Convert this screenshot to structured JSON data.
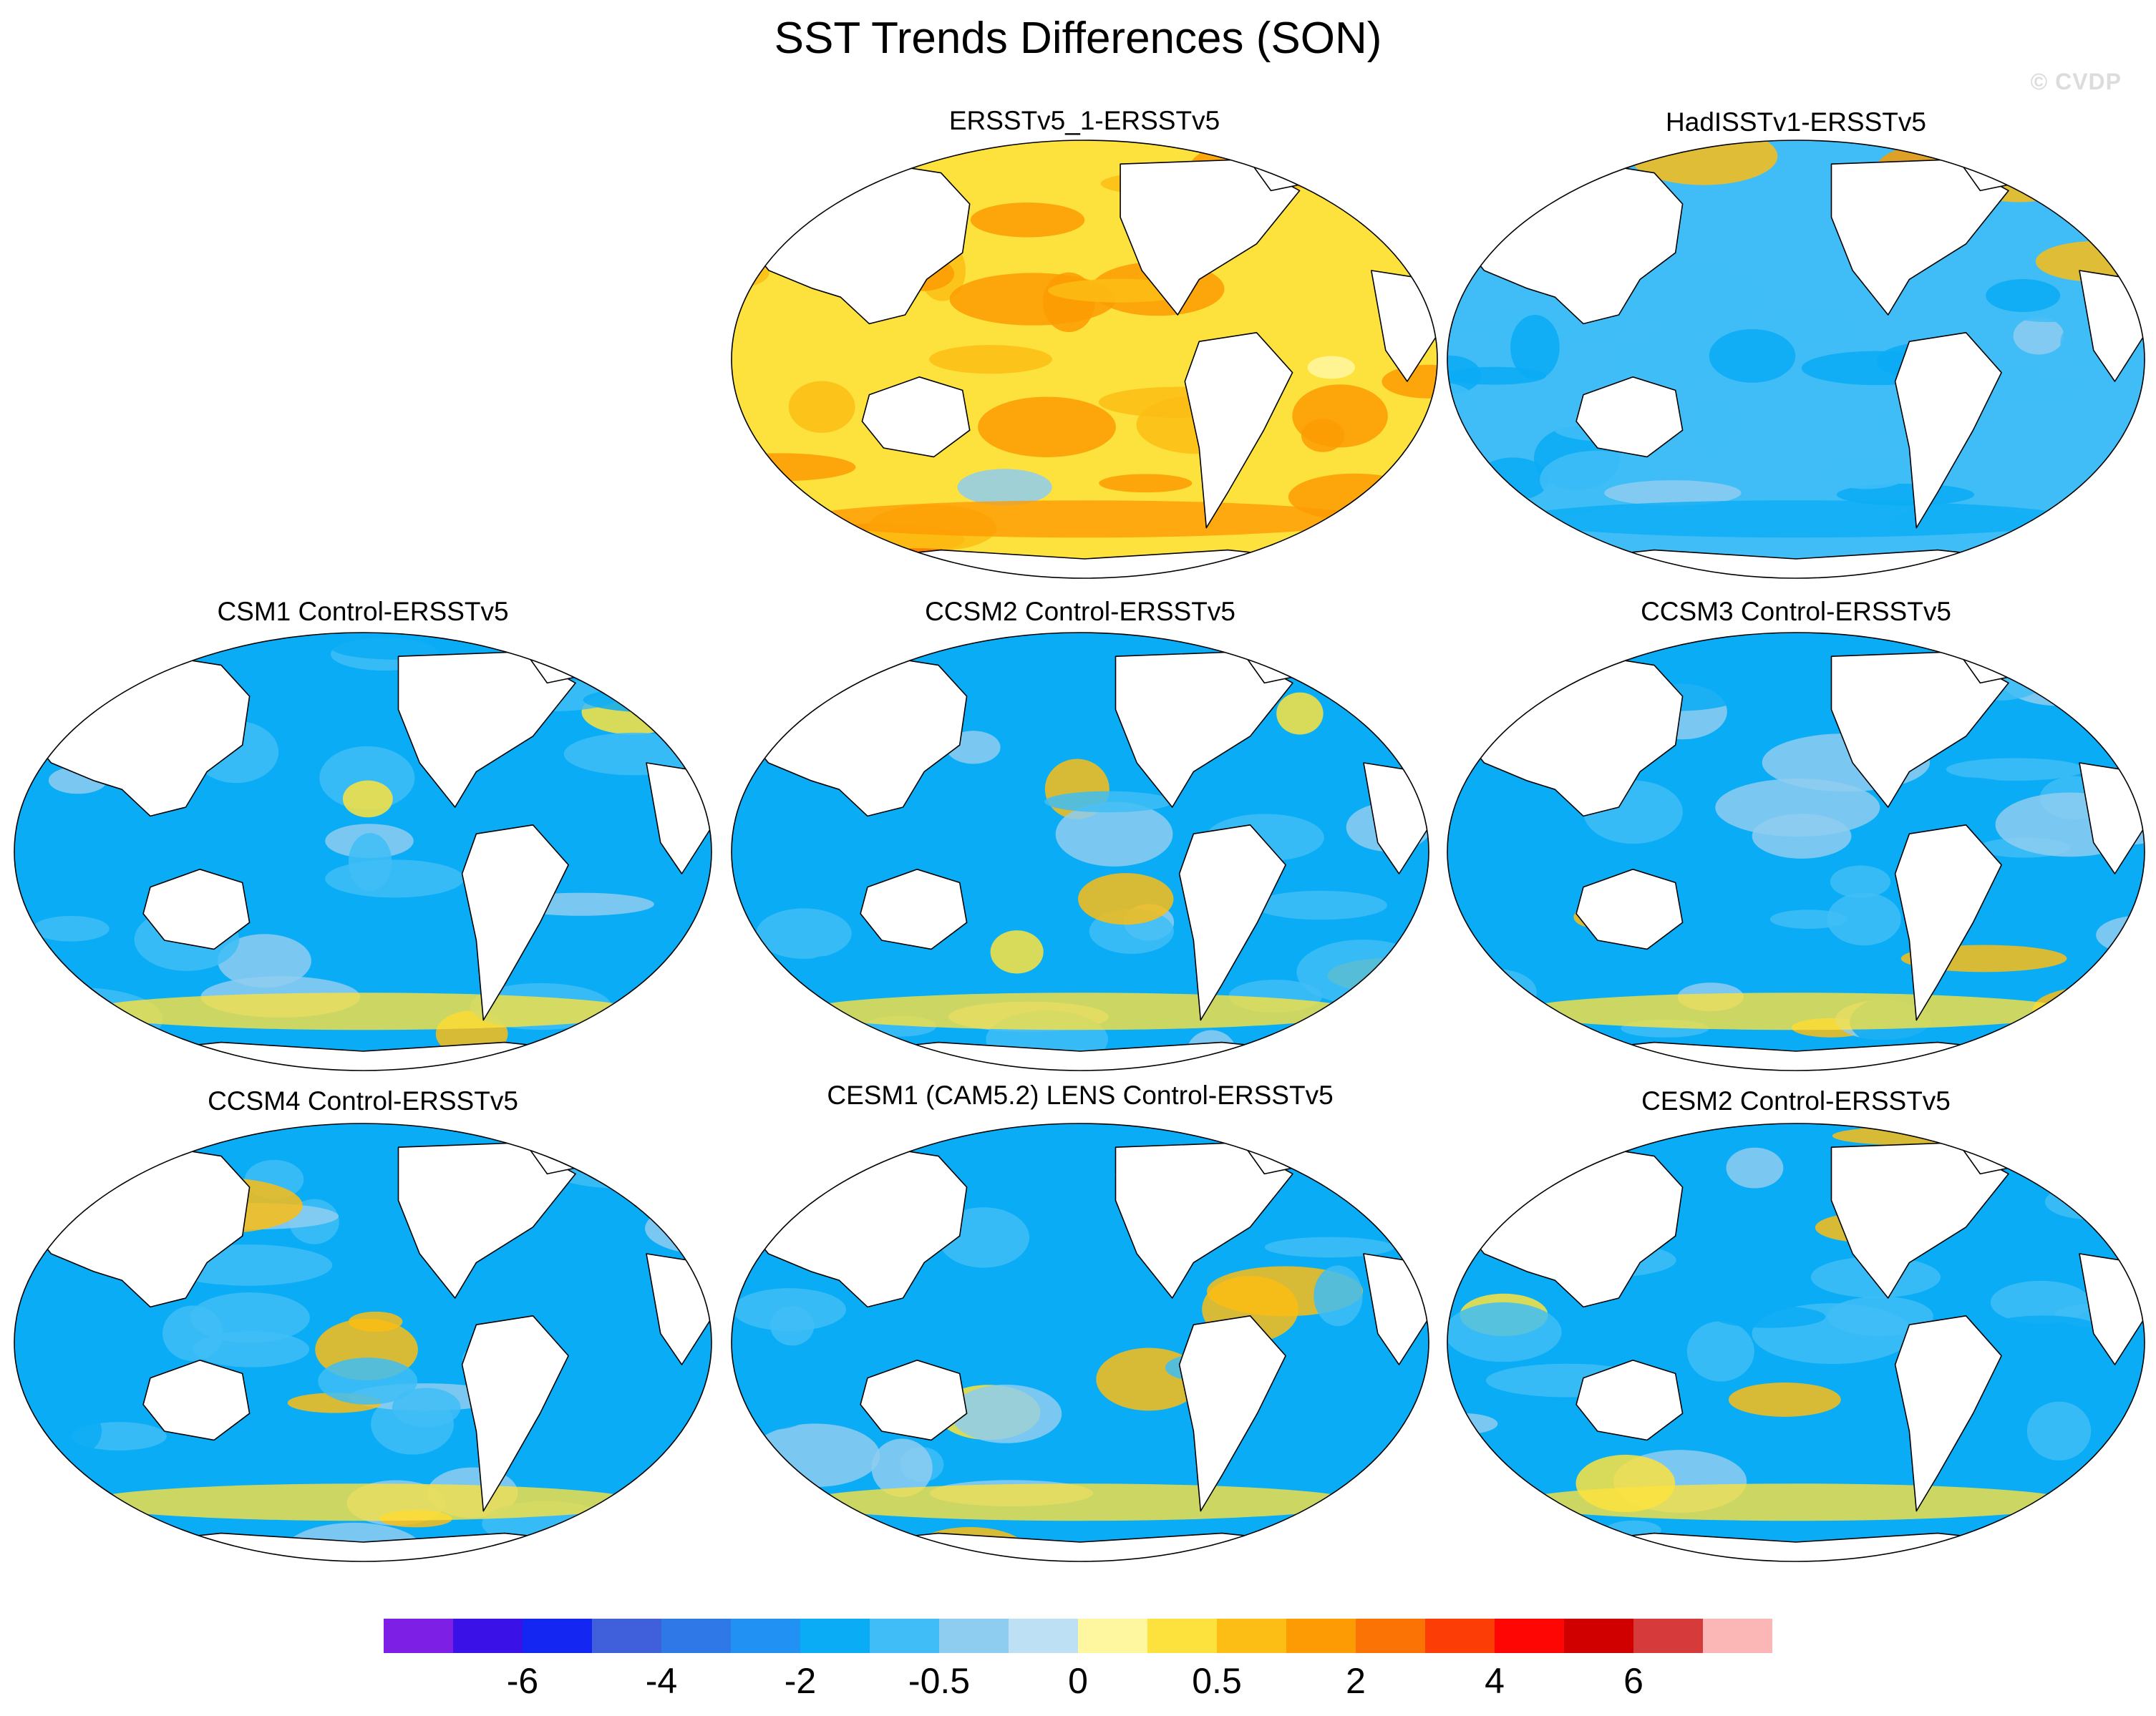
{
  "figure": {
    "title": "SST Trends Differences (SON)",
    "watermark": "© CVDP"
  },
  "colors": {
    "land": "#ffffff",
    "coast": "#000000",
    "palette": [
      "#7e1fe6",
      "#3a12e8",
      "#1426f2",
      "#3f5fdb",
      "#2f78e8",
      "#2192f3",
      "#0aacf5",
      "#40bdf6",
      "#8ecdf0",
      "#bde0f5",
      "#fff7a0",
      "#fde23e",
      "#fcbd14",
      "#fc9b04",
      "#fb7304",
      "#fc3d06",
      "#fd0603",
      "#d10000",
      "#d63a3a",
      "#fbb6b6"
    ]
  },
  "chart_data": {
    "type": "heatmap",
    "projection": "Robinson (Pacific-centered world maps)",
    "variable": "SST trend difference",
    "season": "SON",
    "colorbar": {
      "tick_labels": [
        "-6",
        "-4",
        "-2",
        "-0.5",
        "0",
        "0.5",
        "2",
        "4",
        "6"
      ],
      "bins": 20
    },
    "panels": [
      {
        "id": "ersstv5_1",
        "title": "ERSSTv5_1-ERSSTv5",
        "pattern": "mostly positive (yellow/orange), Southern Ocean strongest positive",
        "base_level": 0.3
      },
      {
        "id": "hadisstv1",
        "title": "HadISSTv1-ERSSTv5",
        "pattern": "mostly negative (blue) with positive North Pacific and Arctic",
        "base_level": -0.8
      },
      {
        "id": "csm1",
        "title": "CSM1 Control-ERSSTv5",
        "pattern": "mostly negative; positive Southern Ocean and Gulf Stream dipole",
        "base_level": -1.0
      },
      {
        "id": "ccsm2",
        "title": "CCSM2 Control-ERSSTv5",
        "pattern": "mostly negative; weak positive Southern Ocean",
        "base_level": -1.0
      },
      {
        "id": "ccsm3",
        "title": "CCSM3 Control-ERSSTv5",
        "pattern": "mostly negative; Gulf Stream dipole",
        "base_level": -1.0
      },
      {
        "id": "ccsm4",
        "title": "CCSM4 Control-ERSSTv5",
        "pattern": "mostly negative",
        "base_level": -1.0
      },
      {
        "id": "cesm1_lens",
        "title": "CESM1 (CAM5.2) LENS Control-ERSSTv5",
        "pattern": "mostly negative",
        "base_level": -1.0
      },
      {
        "id": "cesm2",
        "title": "CESM2 Control-ERSSTv5",
        "pattern": "mostly negative",
        "base_level": -1.0
      }
    ]
  }
}
